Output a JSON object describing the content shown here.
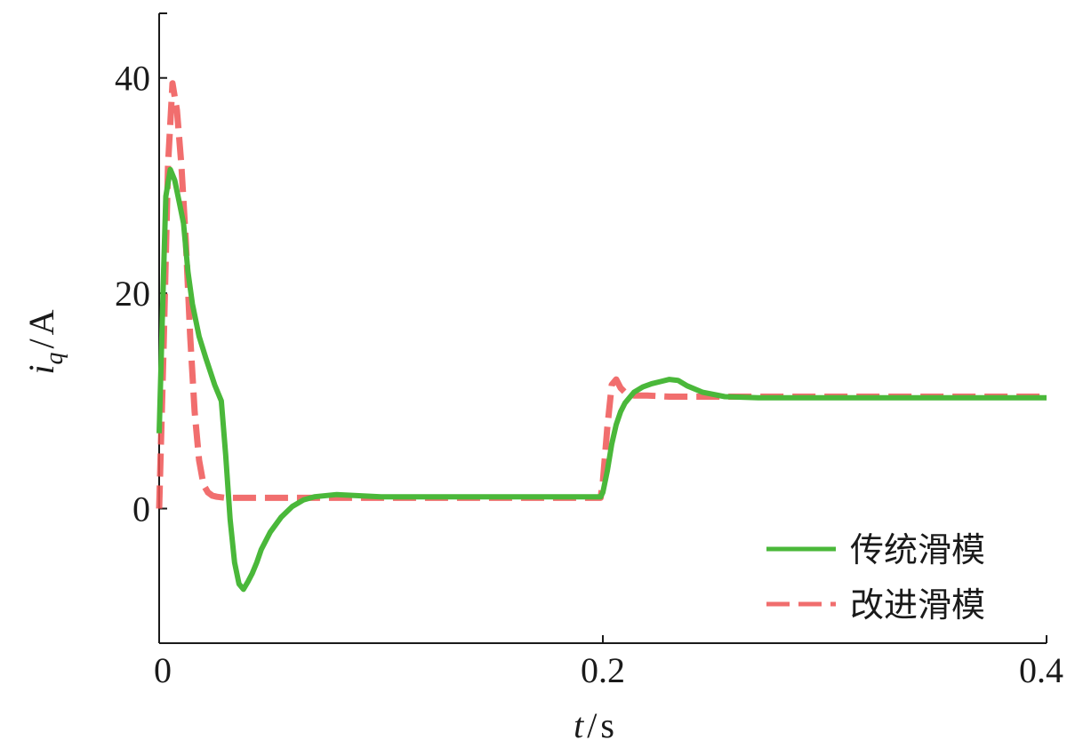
{
  "chart_data": {
    "type": "line",
    "title": "",
    "xlabel": {
      "var": "t",
      "unit": "s",
      "sep": "/"
    },
    "ylabel": {
      "var": "i",
      "sub": "q",
      "unit": "A",
      "sep": "/"
    },
    "xlim": [
      0,
      0.4
    ],
    "ylim": [
      -12.5,
      46
    ],
    "xticks": [
      0,
      0.2,
      0.4
    ],
    "xtick_labels": [
      "0",
      "0.2",
      "0.4"
    ],
    "yticks": [
      0,
      20,
      40
    ],
    "ytick_labels": [
      "0",
      "20",
      "40"
    ],
    "grid": false,
    "legend_position": "bottom-right",
    "series": [
      {
        "name": "改进滑模",
        "color": "#ee5555",
        "style": "dashed",
        "x": [
          0,
          0.002,
          0.004,
          0.006,
          0.008,
          0.01,
          0.012,
          0.014,
          0.016,
          0.018,
          0.02,
          0.022,
          0.024,
          0.026,
          0.03,
          0.04,
          0.06,
          0.08,
          0.1,
          0.15,
          0.199,
          0.2,
          0.202,
          0.204,
          0.206,
          0.208,
          0.21,
          0.214,
          0.22,
          0.23,
          0.24,
          0.25,
          0.3,
          0.35,
          0.4
        ],
        "y": [
          0,
          15,
          32,
          39.5,
          37,
          32,
          25,
          16,
          9,
          4.5,
          2.2,
          1.5,
          1.2,
          1.1,
          1.0,
          1.0,
          1.0,
          1.0,
          1.0,
          1.0,
          1.0,
          2.5,
          7.5,
          11.5,
          12,
          11.2,
          10.8,
          10.5,
          10.5,
          10.4,
          10.4,
          10.4,
          10.4,
          10.4,
          10.4
        ]
      },
      {
        "name": "传统滑模",
        "color": "#4ab83a",
        "style": "solid",
        "x": [
          0,
          0.002,
          0.003,
          0.005,
          0.007,
          0.009,
          0.011,
          0.013,
          0.015,
          0.018,
          0.021,
          0.025,
          0.028,
          0.03,
          0.032,
          0.034,
          0.036,
          0.038,
          0.04,
          0.042,
          0.044,
          0.046,
          0.05,
          0.055,
          0.06,
          0.065,
          0.07,
          0.08,
          0.09,
          0.1,
          0.15,
          0.199,
          0.2,
          0.202,
          0.204,
          0.206,
          0.208,
          0.21,
          0.214,
          0.218,
          0.222,
          0.226,
          0.23,
          0.234,
          0.238,
          0.245,
          0.255,
          0.27,
          0.3,
          0.35,
          0.4
        ],
        "y": [
          7,
          22,
          29,
          31.5,
          30.5,
          28.5,
          26.5,
          22,
          19,
          16,
          14,
          11.5,
          10,
          5,
          -1,
          -5,
          -7,
          -7.5,
          -6.8,
          -6,
          -5,
          -3.8,
          -2.2,
          -0.8,
          0.2,
          0.8,
          1.1,
          1.3,
          1.2,
          1.1,
          1.1,
          1.1,
          1.5,
          3.5,
          6,
          7.8,
          9,
          9.8,
          10.8,
          11.3,
          11.6,
          11.8,
          12.0,
          11.9,
          11.4,
          10.8,
          10.4,
          10.3,
          10.3,
          10.3,
          10.3
        ]
      }
    ]
  }
}
